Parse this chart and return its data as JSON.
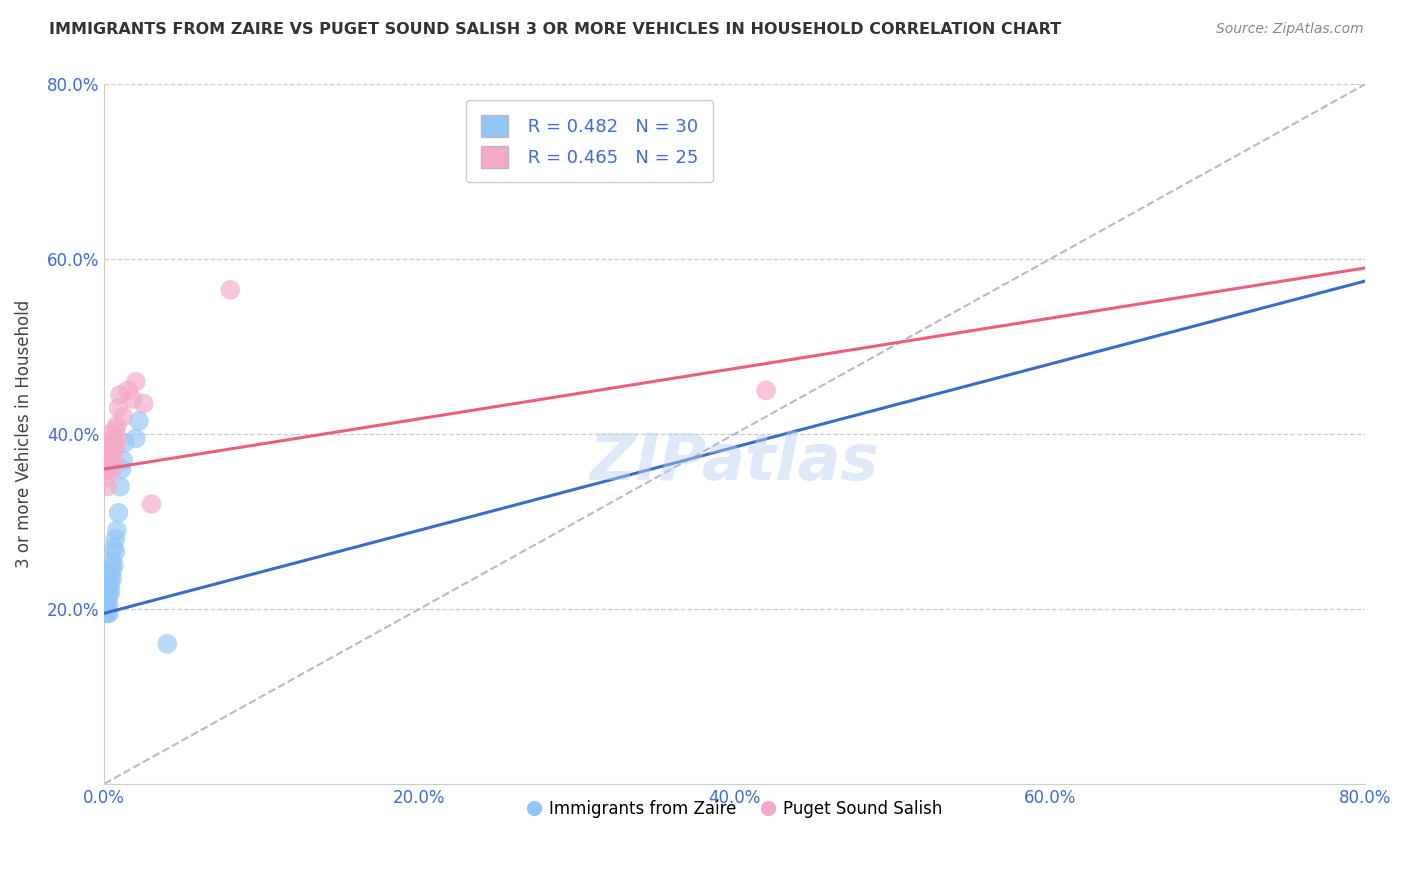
{
  "title": "IMMIGRANTS FROM ZAIRE VS PUGET SOUND SALISH 3 OR MORE VEHICLES IN HOUSEHOLD CORRELATION CHART",
  "source": "Source: ZipAtlas.com",
  "ylabel": "3 or more Vehicles in Household",
  "xlim": [
    0.0,
    0.8
  ],
  "ylim": [
    0.0,
    0.8
  ],
  "xtick_labels": [
    "0.0%",
    "20.0%",
    "40.0%",
    "60.0%",
    "80.0%"
  ],
  "xtick_vals": [
    0.0,
    0.2,
    0.4,
    0.6,
    0.8
  ],
  "ytick_labels": [
    "20.0%",
    "40.0%",
    "60.0%",
    "80.0%"
  ],
  "ytick_vals": [
    0.2,
    0.4,
    0.6,
    0.8
  ],
  "legend_labels": [
    "Immigrants from Zaire",
    "Puget Sound Salish"
  ],
  "blue_color": "#92C5F5",
  "pink_color": "#F4A8C7",
  "blue_line_color": "#3A6BC8",
  "pink_line_color": "#E8607A",
  "dashed_line_color": "#AAAACC",
  "watermark": "ZIPatlas",
  "R_blue": 0.482,
  "N_blue": 30,
  "R_pink": 0.465,
  "N_pink": 25,
  "blue_points_x": [
    0.001,
    0.001,
    0.001,
    0.002,
    0.002,
    0.002,
    0.002,
    0.003,
    0.003,
    0.003,
    0.003,
    0.004,
    0.004,
    0.004,
    0.005,
    0.005,
    0.005,
    0.006,
    0.006,
    0.007,
    0.007,
    0.008,
    0.009,
    0.01,
    0.011,
    0.012,
    0.013,
    0.02,
    0.022,
    0.04
  ],
  "blue_points_y": [
    0.195,
    0.205,
    0.215,
    0.195,
    0.2,
    0.21,
    0.22,
    0.195,
    0.205,
    0.215,
    0.225,
    0.22,
    0.23,
    0.24,
    0.235,
    0.245,
    0.255,
    0.25,
    0.27,
    0.265,
    0.28,
    0.29,
    0.31,
    0.34,
    0.36,
    0.37,
    0.39,
    0.395,
    0.415,
    0.16
  ],
  "pink_points_x": [
    0.001,
    0.002,
    0.002,
    0.003,
    0.003,
    0.004,
    0.004,
    0.005,
    0.005,
    0.006,
    0.006,
    0.007,
    0.007,
    0.008,
    0.008,
    0.009,
    0.01,
    0.012,
    0.015,
    0.018,
    0.02,
    0.025,
    0.03,
    0.08,
    0.42
  ],
  "pink_points_y": [
    0.35,
    0.34,
    0.36,
    0.38,
    0.4,
    0.37,
    0.39,
    0.36,
    0.38,
    0.37,
    0.39,
    0.385,
    0.405,
    0.395,
    0.41,
    0.43,
    0.445,
    0.42,
    0.45,
    0.44,
    0.46,
    0.435,
    0.32,
    0.565,
    0.45
  ],
  "blue_line_x": [
    0.0,
    0.8
  ],
  "blue_line_y": [
    0.195,
    0.575
  ],
  "pink_line_x": [
    0.0,
    0.8
  ],
  "pink_line_y": [
    0.36,
    0.59
  ],
  "diag_line_x": [
    0.0,
    0.8
  ],
  "diag_line_y": [
    0.0,
    0.8
  ]
}
